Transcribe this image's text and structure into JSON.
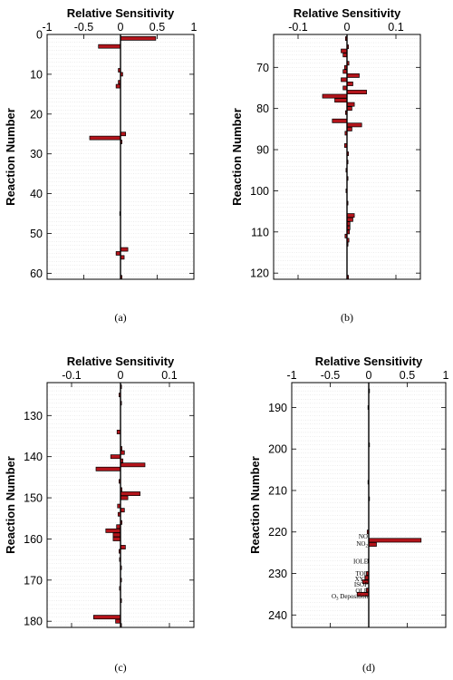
{
  "chart_data": [
    {
      "type": "bar",
      "orientation": "horizontal",
      "panel": "(a)",
      "xlabel": "Relative Sensitivity",
      "ylabel": "Reaction Number",
      "xlim": [
        -1,
        1
      ],
      "ylim": [
        0,
        61.5
      ],
      "y_inverted": true,
      "xticks": [
        -1,
        -0.5,
        0,
        0.5,
        1
      ],
      "xtick_labels": [
        "-1",
        "-0.5",
        "0",
        "0.5",
        "1"
      ],
      "yticks": [
        0,
        10,
        20,
        30,
        40,
        50,
        60
      ],
      "ytick_labels": [
        "0",
        "10",
        "20",
        "30",
        "40",
        "50",
        "60"
      ],
      "bars": [
        {
          "reaction": 1,
          "value": 0.48
        },
        {
          "reaction": 3,
          "value": -0.3
        },
        {
          "reaction": 9,
          "value": -0.03
        },
        {
          "reaction": 10,
          "value": 0.03
        },
        {
          "reaction": 12,
          "value": -0.03
        },
        {
          "reaction": 13,
          "value": -0.06
        },
        {
          "reaction": 25,
          "value": 0.07
        },
        {
          "reaction": 26,
          "value": -0.42
        },
        {
          "reaction": 27,
          "value": 0.02
        },
        {
          "reaction": 45,
          "value": -0.01
        },
        {
          "reaction": 54,
          "value": 0.1
        },
        {
          "reaction": 55,
          "value": -0.06
        },
        {
          "reaction": 56,
          "value": 0.05
        },
        {
          "reaction": 61,
          "value": 0.02
        }
      ]
    },
    {
      "type": "bar",
      "orientation": "horizontal",
      "panel": "(b)",
      "xlabel": "Relative Sensitivity",
      "ylabel": "Reaction Number",
      "xlim": [
        -0.15,
        0.15
      ],
      "ylim": [
        62,
        121.5
      ],
      "y_inverted": true,
      "xticks": [
        -0.1,
        0,
        0.1
      ],
      "xtick_labels": [
        "-0.1",
        "0",
        "0.1"
      ],
      "yticks": [
        70,
        80,
        90,
        100,
        110,
        120
      ],
      "ytick_labels": [
        "70",
        "80",
        "90",
        "100",
        "110",
        "120"
      ],
      "bars": [
        {
          "reaction": 63,
          "value": -0.003
        },
        {
          "reaction": 65,
          "value": 0.003
        },
        {
          "reaction": 66,
          "value": -0.012
        },
        {
          "reaction": 67,
          "value": -0.008
        },
        {
          "reaction": 69,
          "value": 0.004
        },
        {
          "reaction": 70,
          "value": -0.005
        },
        {
          "reaction": 71,
          "value": -0.008
        },
        {
          "reaction": 72,
          "value": 0.025
        },
        {
          "reaction": 73,
          "value": -0.012
        },
        {
          "reaction": 74,
          "value": 0.012
        },
        {
          "reaction": 75,
          "value": -0.008
        },
        {
          "reaction": 76,
          "value": 0.04
        },
        {
          "reaction": 77,
          "value": -0.05
        },
        {
          "reaction": 78,
          "value": -0.025
        },
        {
          "reaction": 79,
          "value": 0.015
        },
        {
          "reaction": 80,
          "value": 0.01
        },
        {
          "reaction": 81,
          "value": -0.003
        },
        {
          "reaction": 83,
          "value": -0.03
        },
        {
          "reaction": 84,
          "value": 0.03
        },
        {
          "reaction": 85,
          "value": 0.01
        },
        {
          "reaction": 86,
          "value": -0.004
        },
        {
          "reaction": 89,
          "value": -0.005
        },
        {
          "reaction": 91,
          "value": 0.003
        },
        {
          "reaction": 93,
          "value": 0.002
        },
        {
          "reaction": 95,
          "value": -0.002
        },
        {
          "reaction": 97,
          "value": 0.002
        },
        {
          "reaction": 100,
          "value": -0.002
        },
        {
          "reaction": 103,
          "value": 0.002
        },
        {
          "reaction": 106,
          "value": 0.015
        },
        {
          "reaction": 107,
          "value": 0.012
        },
        {
          "reaction": 108,
          "value": 0.006
        },
        {
          "reaction": 109,
          "value": 0.006
        },
        {
          "reaction": 110,
          "value": 0.005
        },
        {
          "reaction": 111,
          "value": -0.004
        },
        {
          "reaction": 112,
          "value": 0.004
        },
        {
          "reaction": 113,
          "value": 0.002
        },
        {
          "reaction": 121,
          "value": 0.003
        }
      ]
    },
    {
      "type": "bar",
      "orientation": "horizontal",
      "panel": "(c)",
      "xlabel": "Relative Sensitivity",
      "ylabel": "Reaction Number",
      "xlim": [
        -0.15,
        0.15
      ],
      "ylim": [
        122,
        181.5
      ],
      "y_inverted": true,
      "xticks": [
        -0.1,
        0,
        0.1
      ],
      "xtick_labels": [
        "-0.1",
        "0",
        "0.1"
      ],
      "yticks": [
        130,
        140,
        150,
        160,
        170,
        180
      ],
      "ytick_labels": [
        "130",
        "140",
        "150",
        "160",
        "170",
        "180"
      ],
      "bars": [
        {
          "reaction": 123,
          "value": 0.002
        },
        {
          "reaction": 125,
          "value": -0.003
        },
        {
          "reaction": 127,
          "value": 0.002
        },
        {
          "reaction": 134,
          "value": -0.007
        },
        {
          "reaction": 138,
          "value": 0.003
        },
        {
          "reaction": 139,
          "value": 0.008
        },
        {
          "reaction": 140,
          "value": -0.02
        },
        {
          "reaction": 141,
          "value": 0.005
        },
        {
          "reaction": 142,
          "value": 0.05
        },
        {
          "reaction": 143,
          "value": -0.05
        },
        {
          "reaction": 146,
          "value": -0.003
        },
        {
          "reaction": 148,
          "value": 0.003
        },
        {
          "reaction": 149,
          "value": 0.04
        },
        {
          "reaction": 150,
          "value": 0.015
        },
        {
          "reaction": 152,
          "value": -0.006
        },
        {
          "reaction": 153,
          "value": 0.008
        },
        {
          "reaction": 154,
          "value": -0.005
        },
        {
          "reaction": 156,
          "value": 0.003
        },
        {
          "reaction": 157,
          "value": -0.008
        },
        {
          "reaction": 158,
          "value": -0.03
        },
        {
          "reaction": 159,
          "value": -0.015
        },
        {
          "reaction": 160,
          "value": -0.015
        },
        {
          "reaction": 162,
          "value": 0.01
        },
        {
          "reaction": 163,
          "value": -0.003
        },
        {
          "reaction": 165,
          "value": -0.002
        },
        {
          "reaction": 167,
          "value": 0.002
        },
        {
          "reaction": 170,
          "value": 0.002
        },
        {
          "reaction": 172,
          "value": -0.002
        },
        {
          "reaction": 175,
          "value": 0.002
        },
        {
          "reaction": 179,
          "value": -0.055
        },
        {
          "reaction": 180,
          "value": -0.01
        },
        {
          "reaction": 181,
          "value": 0.002
        }
      ]
    },
    {
      "type": "bar",
      "orientation": "horizontal",
      "panel": "(d)",
      "xlabel": "Relative Sensitivity",
      "ylabel": "Reaction Number",
      "xlim": [
        -1,
        1
      ],
      "ylim": [
        184,
        243
      ],
      "y_inverted": true,
      "xticks": [
        -1,
        -0.5,
        0,
        0.5,
        1
      ],
      "xtick_labels": [
        "-1",
        "-0.5",
        "0",
        "0.5",
        "1"
      ],
      "yticks": [
        190,
        200,
        210,
        220,
        230,
        240
      ],
      "ytick_labels": [
        "190",
        "200",
        "210",
        "220",
        "230",
        "240"
      ],
      "bars": [
        {
          "reaction": 186,
          "value": 0.01
        },
        {
          "reaction": 190,
          "value": -0.01
        },
        {
          "reaction": 199,
          "value": 0.01
        },
        {
          "reaction": 208,
          "value": -0.01
        },
        {
          "reaction": 212,
          "value": 0.01
        },
        {
          "reaction": 220,
          "value": -0.02
        },
        {
          "reaction": 222,
          "value": 0.68
        },
        {
          "reaction": 223,
          "value": 0.1
        },
        {
          "reaction": 227,
          "value": -0.01
        },
        {
          "reaction": 230,
          "value": -0.03
        },
        {
          "reaction": 231,
          "value": -0.05
        },
        {
          "reaction": 232,
          "value": -0.08
        },
        {
          "reaction": 234,
          "value": -0.03
        },
        {
          "reaction": 235,
          "value": -0.15
        }
      ],
      "annotations": [
        {
          "text": "NO",
          "reaction": 221
        },
        {
          "text": "NO",
          "subscript": "2",
          "reaction": 222.8
        },
        {
          "text": "IOLE",
          "reaction": 227
        },
        {
          "text": "TOL",
          "reaction": 230
        },
        {
          "text": "XYL",
          "reaction": 231.3
        },
        {
          "text": "ISOP",
          "reaction": 232.6
        },
        {
          "text": "OLE",
          "reaction": 234.2
        },
        {
          "text": "O",
          "subscript": "3",
          "suffix": " Deposition",
          "reaction": 235.5
        }
      ]
    }
  ]
}
